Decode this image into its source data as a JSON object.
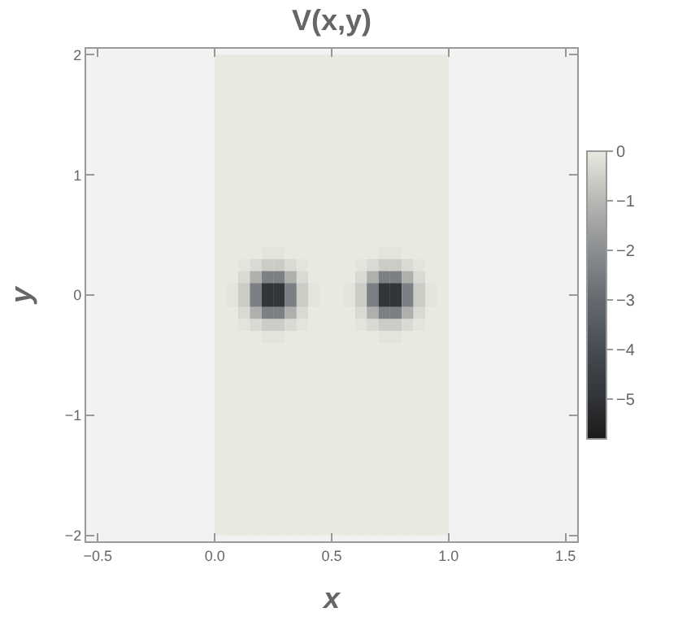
{
  "chart_data": {
    "type": "heatmap",
    "title": "V(x,y)",
    "xlabel": "x",
    "ylabel": "y",
    "x": [
      0.025,
      0.075,
      0.125,
      0.175,
      0.225,
      0.275,
      0.325,
      0.375,
      0.425,
      0.475,
      0.525,
      0.575,
      0.625,
      0.675,
      0.725,
      0.775,
      0.825,
      0.875,
      0.925,
      0.975
    ],
    "y": [
      1.95,
      1.85,
      1.75,
      1.65,
      1.55,
      1.45,
      1.35,
      1.25,
      1.15,
      1.05,
      0.95,
      0.85,
      0.75,
      0.65,
      0.55,
      0.45,
      0.35,
      0.25,
      0.15,
      0.05,
      -0.05,
      -0.15,
      -0.25,
      -0.35,
      -0.45,
      -0.55,
      -0.65,
      -0.75,
      -0.85,
      -0.95,
      -1.05,
      -1.15,
      -1.25,
      -1.35,
      -1.45,
      -1.55,
      -1.65,
      -1.75,
      -1.85,
      -1.95
    ],
    "cells": [
      [
        0,
        0,
        0,
        0,
        0,
        0,
        0,
        0,
        0,
        0,
        0,
        0,
        0,
        0,
        0,
        0,
        0,
        0,
        0,
        0
      ],
      [
        0,
        0,
        0,
        0,
        0,
        0,
        0,
        0,
        0,
        0,
        0,
        0,
        0,
        0,
        0,
        0,
        0,
        0,
        0,
        0
      ],
      [
        0,
        0,
        0,
        0,
        0,
        0,
        0,
        0,
        0,
        0,
        0,
        0,
        0,
        0,
        0,
        0,
        0,
        0,
        0,
        0
      ],
      [
        0,
        0,
        0,
        0,
        0,
        0,
        0,
        0,
        0,
        0,
        0,
        0,
        0,
        0,
        0,
        0,
        0,
        0,
        0,
        0
      ],
      [
        0,
        0,
        0,
        0,
        0,
        0,
        0,
        0,
        0,
        0,
        0,
        0,
        0,
        0,
        0,
        0,
        0,
        0,
        0,
        0
      ],
      [
        0,
        0,
        0,
        0,
        0,
        0,
        0,
        0,
        0,
        0,
        0,
        0,
        0,
        0,
        0,
        0,
        0,
        0,
        0,
        0
      ],
      [
        0,
        0,
        0,
        0,
        0,
        0,
        0,
        0,
        0,
        0,
        0,
        0,
        0,
        0,
        0,
        0,
        0,
        0,
        0,
        0
      ],
      [
        0,
        0,
        0,
        0,
        0,
        0,
        0,
        0,
        0,
        0,
        0,
        0,
        0,
        0,
        0,
        0,
        0,
        0,
        0,
        0
      ],
      [
        0,
        0,
        0,
        0,
        0,
        0,
        0,
        0,
        0,
        0,
        0,
        0,
        0,
        0,
        0,
        0,
        0,
        0,
        0,
        0
      ],
      [
        0,
        0,
        0,
        0,
        0,
        0,
        0,
        0,
        0,
        0,
        0,
        0,
        0,
        0,
        0,
        0,
        0,
        0,
        0,
        0
      ],
      [
        0,
        0,
        0,
        0,
        0,
        0,
        0,
        0,
        0,
        0,
        0,
        0,
        0,
        0,
        0,
        0,
        0,
        0,
        0,
        0
      ],
      [
        0,
        0,
        0,
        0,
        0,
        0,
        0,
        0,
        0,
        0,
        0,
        0,
        0,
        0,
        0,
        0,
        0,
        0,
        0,
        0
      ],
      [
        0,
        0,
        0,
        0,
        0,
        0,
        0,
        0,
        0,
        0,
        0,
        0,
        0,
        0,
        0,
        0,
        0,
        0,
        0,
        0
      ],
      [
        0,
        0,
        0,
        0,
        0,
        0,
        0,
        0,
        0,
        0,
        0,
        0,
        0,
        0,
        0,
        0,
        0,
        0,
        0,
        0
      ],
      [
        0,
        0,
        0,
        0,
        0,
        0,
        0,
        0,
        0,
        0,
        0,
        0,
        0,
        0,
        0,
        0,
        0,
        0,
        0,
        0
      ],
      [
        0,
        0,
        0,
        0,
        0,
        0,
        0,
        0,
        0,
        0,
        0,
        0,
        0,
        0,
        0,
        0,
        0,
        0,
        0,
        0
      ],
      [
        0,
        0,
        0,
        0,
        -0.1,
        -0.1,
        0,
        0,
        0,
        0,
        0,
        0,
        0,
        0,
        -0.1,
        -0.1,
        0,
        0,
        0,
        0
      ],
      [
        0,
        0,
        -0.1,
        -0.3,
        -0.6,
        -0.6,
        -0.3,
        -0.1,
        0,
        0,
        0,
        0,
        -0.1,
        -0.3,
        -0.6,
        -0.6,
        -0.3,
        -0.1,
        0,
        0
      ],
      [
        0,
        0,
        -0.3,
        -1.2,
        -2.4,
        -2.4,
        -1.2,
        -0.3,
        0,
        0,
        0,
        0,
        -0.3,
        -1.2,
        -2.4,
        -2.4,
        -1.2,
        -0.3,
        0,
        0
      ],
      [
        0,
        -0.1,
        -0.6,
        -2.4,
        -4.9,
        -4.9,
        -2.4,
        -0.6,
        -0.1,
        0,
        0,
        -0.1,
        -0.6,
        -2.4,
        -4.9,
        -4.9,
        -2.4,
        -0.6,
        -0.1,
        0
      ],
      [
        0,
        -0.1,
        -0.6,
        -2.4,
        -4.9,
        -4.9,
        -2.4,
        -0.6,
        -0.1,
        0,
        0,
        -0.1,
        -0.6,
        -2.4,
        -4.9,
        -4.9,
        -2.4,
        -0.6,
        -0.1,
        0
      ],
      [
        0,
        0,
        -0.3,
        -1.2,
        -2.4,
        -2.4,
        -1.2,
        -0.3,
        0,
        0,
        0,
        0,
        -0.3,
        -1.2,
        -2.4,
        -2.4,
        -1.2,
        -0.3,
        0,
        0
      ],
      [
        0,
        0,
        -0.1,
        -0.3,
        -0.6,
        -0.6,
        -0.3,
        -0.1,
        0,
        0,
        0,
        0,
        -0.1,
        -0.3,
        -0.6,
        -0.6,
        -0.3,
        -0.1,
        0,
        0
      ],
      [
        0,
        0,
        0,
        0,
        -0.1,
        -0.1,
        0,
        0,
        0,
        0,
        0,
        0,
        0,
        0,
        -0.1,
        -0.1,
        0,
        0,
        0,
        0
      ],
      [
        0,
        0,
        0,
        0,
        0,
        0,
        0,
        0,
        0,
        0,
        0,
        0,
        0,
        0,
        0,
        0,
        0,
        0,
        0,
        0
      ],
      [
        0,
        0,
        0,
        0,
        0,
        0,
        0,
        0,
        0,
        0,
        0,
        0,
        0,
        0,
        0,
        0,
        0,
        0,
        0,
        0
      ],
      [
        0,
        0,
        0,
        0,
        0,
        0,
        0,
        0,
        0,
        0,
        0,
        0,
        0,
        0,
        0,
        0,
        0,
        0,
        0,
        0
      ],
      [
        0,
        0,
        0,
        0,
        0,
        0,
        0,
        0,
        0,
        0,
        0,
        0,
        0,
        0,
        0,
        0,
        0,
        0,
        0,
        0
      ],
      [
        0,
        0,
        0,
        0,
        0,
        0,
        0,
        0,
        0,
        0,
        0,
        0,
        0,
        0,
        0,
        0,
        0,
        0,
        0,
        0
      ],
      [
        0,
        0,
        0,
        0,
        0,
        0,
        0,
        0,
        0,
        0,
        0,
        0,
        0,
        0,
        0,
        0,
        0,
        0,
        0,
        0
      ],
      [
        0,
        0,
        0,
        0,
        0,
        0,
        0,
        0,
        0,
        0,
        0,
        0,
        0,
        0,
        0,
        0,
        0,
        0,
        0,
        0
      ],
      [
        0,
        0,
        0,
        0,
        0,
        0,
        0,
        0,
        0,
        0,
        0,
        0,
        0,
        0,
        0,
        0,
        0,
        0,
        0,
        0
      ],
      [
        0,
        0,
        0,
        0,
        0,
        0,
        0,
        0,
        0,
        0,
        0,
        0,
        0,
        0,
        0,
        0,
        0,
        0,
        0,
        0
      ],
      [
        0,
        0,
        0,
        0,
        0,
        0,
        0,
        0,
        0,
        0,
        0,
        0,
        0,
        0,
        0,
        0,
        0,
        0,
        0,
        0
      ],
      [
        0,
        0,
        0,
        0,
        0,
        0,
        0,
        0,
        0,
        0,
        0,
        0,
        0,
        0,
        0,
        0,
        0,
        0,
        0,
        0
      ],
      [
        0,
        0,
        0,
        0,
        0,
        0,
        0,
        0,
        0,
        0,
        0,
        0,
        0,
        0,
        0,
        0,
        0,
        0,
        0,
        0
      ],
      [
        0,
        0,
        0,
        0,
        0,
        0,
        0,
        0,
        0,
        0,
        0,
        0,
        0,
        0,
        0,
        0,
        0,
        0,
        0,
        0
      ],
      [
        0,
        0,
        0,
        0,
        0,
        0,
        0,
        0,
        0,
        0,
        0,
        0,
        0,
        0,
        0,
        0,
        0,
        0,
        0,
        0
      ],
      [
        0,
        0,
        0,
        0,
        0,
        0,
        0,
        0,
        0,
        0,
        0,
        0,
        0,
        0,
        0,
        0,
        0,
        0,
        0,
        0
      ],
      [
        0,
        0,
        0,
        0,
        0,
        0,
        0,
        0,
        0,
        0,
        0,
        0,
        0,
        0,
        0,
        0,
        0,
        0,
        0,
        0
      ]
    ],
    "clim": [
      -5.8,
      0
    ],
    "cticks": [
      {
        "value": -5,
        "label": "−5"
      },
      {
        "value": -4,
        "label": "−4"
      },
      {
        "value": -3,
        "label": "−3"
      },
      {
        "value": -2,
        "label": "−2"
      },
      {
        "value": -1,
        "label": "−1"
      },
      0
    ],
    "xlim": [
      -0.55,
      1.55
    ],
    "xticks": [
      {
        "value": -0.5,
        "label": "−0.5"
      },
      {
        "value": 0,
        "label": "0.0"
      },
      {
        "value": 0.5,
        "label": "0.5"
      },
      {
        "value": 1,
        "label": "1.0"
      },
      {
        "value": 1.5,
        "label": "1.5"
      }
    ],
    "ylim": [
      -2.05,
      2.05
    ],
    "yticks": [
      {
        "value": -2,
        "label": "−2"
      },
      {
        "value": -1,
        "label": "−1"
      },
      0,
      1,
      2
    ]
  }
}
